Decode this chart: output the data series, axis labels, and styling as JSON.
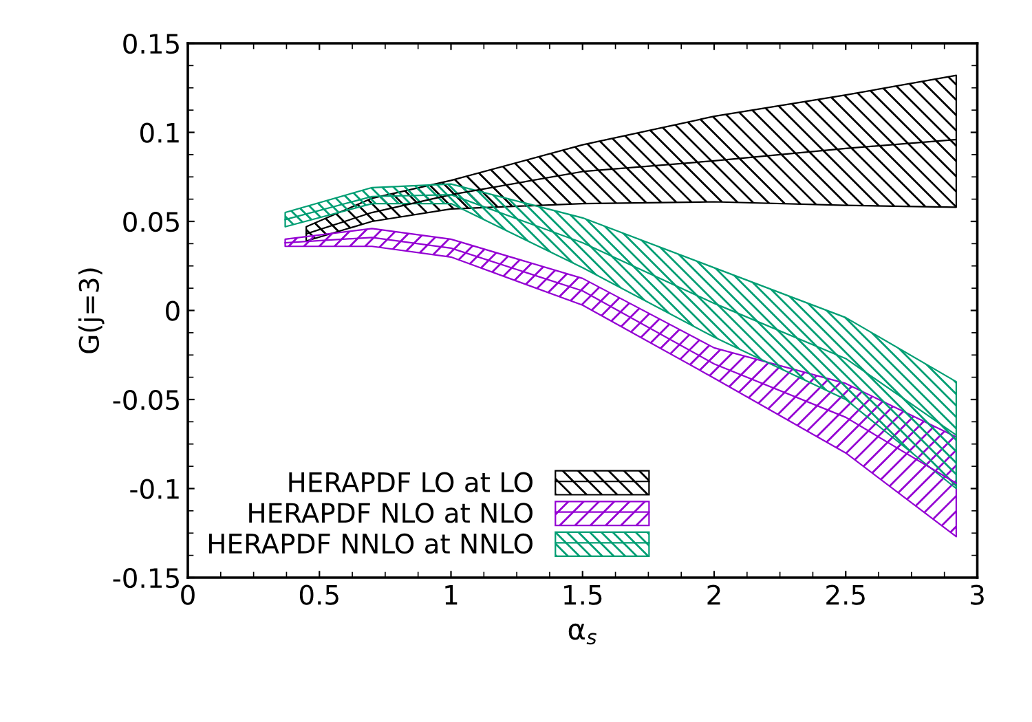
{
  "chart_data": {
    "type": "line",
    "xlabel": "α$_{s}$",
    "ylabel": "G(j=3)",
    "xlim": [
      0,
      3
    ],
    "xticks": [
      0,
      0.5,
      1,
      1.5,
      2,
      2.5,
      3
    ],
    "ylim": [
      -0.15,
      0.15
    ],
    "yticks": [
      -0.15,
      -0.1,
      -0.05,
      0,
      0.05,
      0.1,
      0.15
    ],
    "grid": false,
    "legend": "bottom left",
    "series": [
      {
        "name": "HERAPDF LO at LO",
        "color": "#000000",
        "x": [
          0.45,
          0.7,
          1.0,
          1.5,
          2.0,
          2.5,
          2.92
        ],
        "values": [
          0.043,
          0.055,
          0.065,
          0.078,
          0.084,
          0.091,
          0.096
        ],
        "lower": [
          0.039,
          0.05,
          0.057,
          0.06,
          0.061,
          0.059,
          0.058
        ],
        "upper": [
          0.047,
          0.063,
          0.073,
          0.093,
          0.109,
          0.121,
          0.132
        ]
      },
      {
        "name": "HERAPDF NLO at NLO",
        "color": "#9400d3",
        "x": [
          0.37,
          0.7,
          1.0,
          1.5,
          2.0,
          2.5,
          2.92
        ],
        "values": [
          0.038,
          0.041,
          0.035,
          0.011,
          -0.03,
          -0.06,
          -0.097
        ],
        "lower": [
          0.036,
          0.036,
          0.03,
          0.003,
          -0.038,
          -0.08,
          -0.127
        ],
        "upper": [
          0.04,
          0.046,
          0.04,
          0.018,
          -0.021,
          -0.041,
          -0.071
        ]
      },
      {
        "name": "HERAPDF NNLO at NNLO",
        "color": "#009e73",
        "x": [
          0.37,
          0.7,
          1.0,
          1.5,
          2.0,
          2.5,
          2.92
        ],
        "values": [
          0.051,
          0.064,
          0.065,
          0.038,
          0.004,
          -0.027,
          -0.07
        ],
        "lower": [
          0.047,
          0.06,
          0.06,
          0.024,
          -0.015,
          -0.05,
          -0.1
        ],
        "upper": [
          0.055,
          0.069,
          0.071,
          0.052,
          0.024,
          -0.004,
          -0.04
        ]
      }
    ]
  }
}
